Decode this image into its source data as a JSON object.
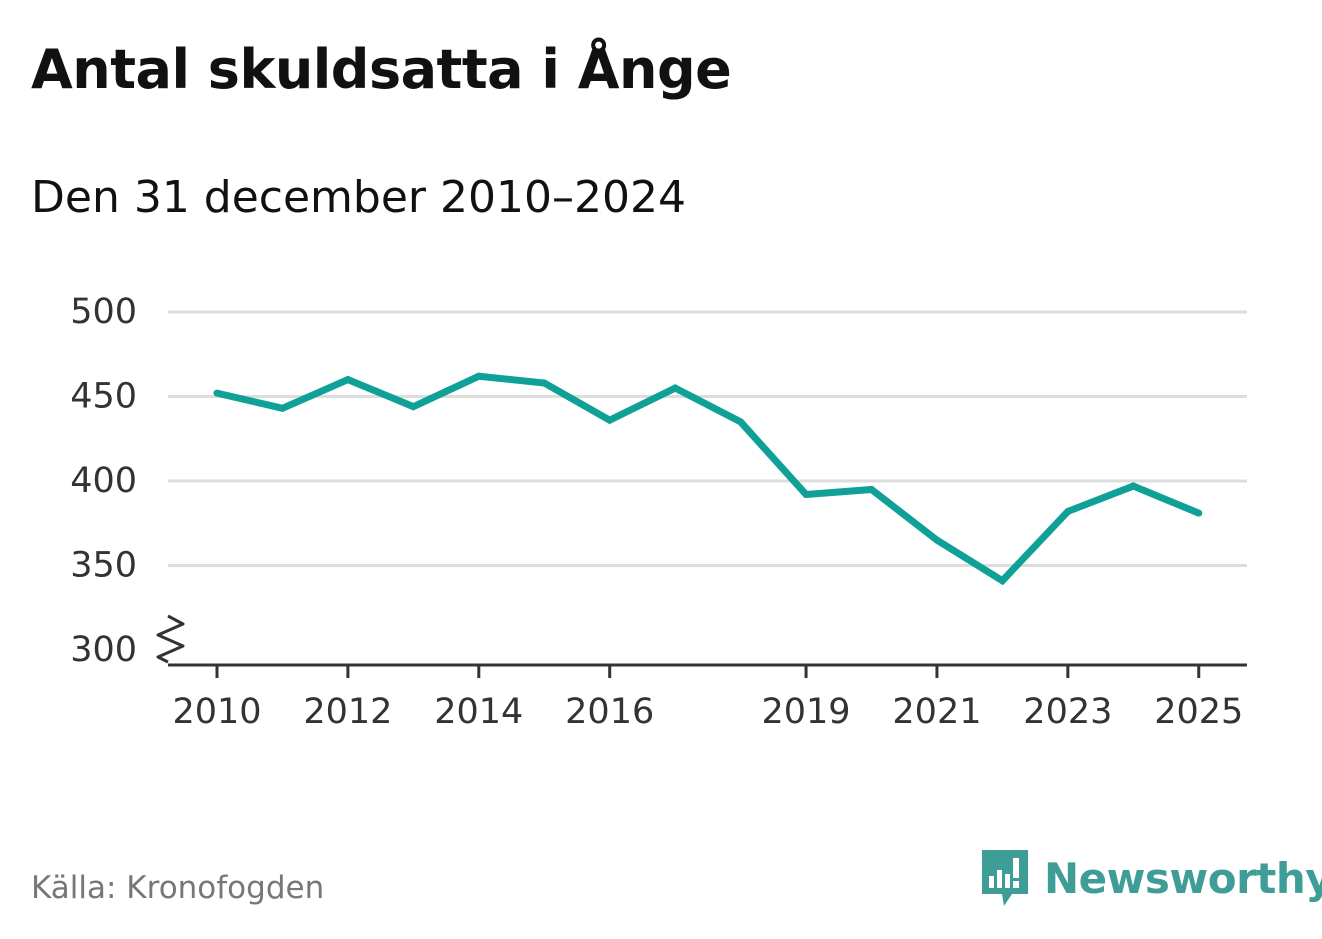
{
  "title": "Antal skuldsatta i Ånge",
  "subtitle": "Den 31 december 2010–2024",
  "source": "Källa: Kronofogden",
  "brand": "Newsworthy",
  "colors": {
    "line": "#0fa198",
    "grid": "#dddddd",
    "axis": "#333333",
    "brand": "#3e9d96"
  },
  "chart_data": {
    "type": "line",
    "title": "Antal skuldsatta i Ånge",
    "subtitle": "Den 31 december 2010–2024",
    "xlabel": "",
    "ylabel": "",
    "ylim": [
      300,
      500
    ],
    "y_ticks": [
      300,
      350,
      400,
      450,
      500
    ],
    "x_ticks": [
      "2010",
      "2012",
      "2014",
      "2016",
      "2019",
      "2021",
      "2023",
      "2025"
    ],
    "axis_break": true,
    "grid": true,
    "series": [
      {
        "name": "Antal skuldsatta",
        "x": [
          2010,
          2011,
          2012,
          2013,
          2014,
          2015,
          2016,
          2017,
          2018,
          2019,
          2020,
          2021,
          2022,
          2023,
          2024,
          2025
        ],
        "values": [
          452,
          443,
          460,
          444,
          462,
          458,
          436,
          455,
          435,
          392,
          395,
          365,
          341,
          382,
          397,
          381
        ]
      }
    ]
  }
}
